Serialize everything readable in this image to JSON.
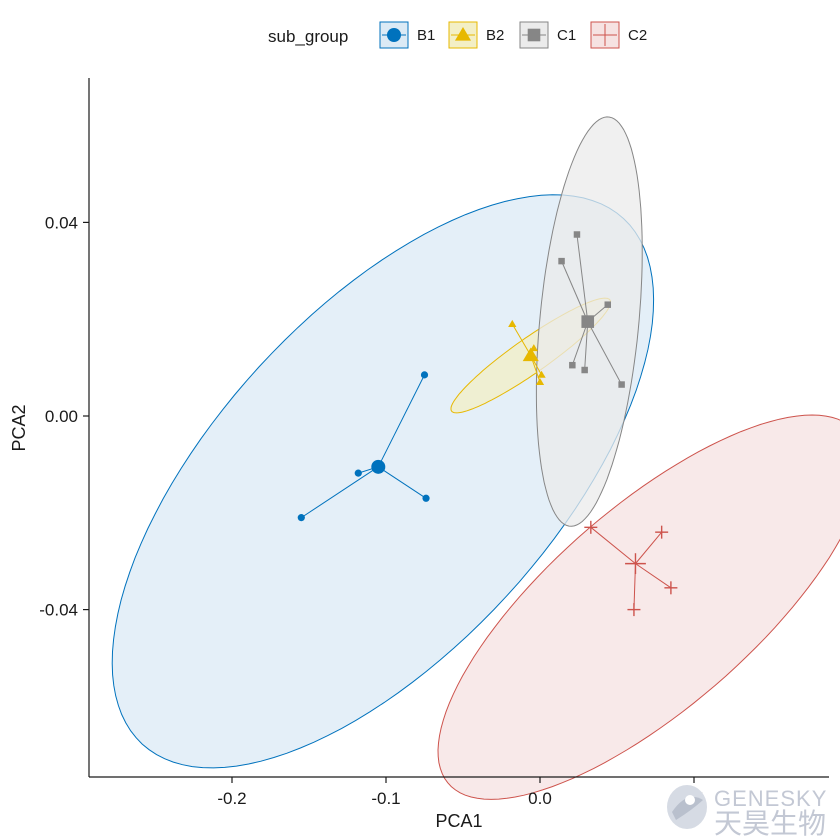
{
  "chart_data": {
    "type": "scatter",
    "xlabel": "PCA1",
    "ylabel": "PCA2",
    "xlim": [
      -0.29,
      0.19
    ],
    "ylim": [
      -0.075,
      0.07
    ],
    "x_ticks": [
      -0.2,
      -0.1,
      0.0,
      0.1
    ],
    "x_tick_labels": [
      "-0.2",
      "-0.1",
      "0.0",
      "0.1"
    ],
    "y_ticks": [
      -0.04,
      0.0,
      0.04
    ],
    "y_tick_labels": [
      "-0.04",
      "0.00",
      "0.04"
    ],
    "grid": false,
    "legend": {
      "title": "sub_group",
      "position": "top"
    },
    "series": [
      {
        "name": "B1",
        "color": "#0072BD",
        "marker": "circle",
        "centroid": [
          -0.105,
          -0.0105
        ],
        "points": [
          [
            -0.155,
            -0.021
          ],
          [
            -0.118,
            -0.0118
          ],
          [
            -0.075,
            0.0085
          ],
          [
            -0.074,
            -0.017
          ]
        ],
        "ellipse": {
          "center": [
            -0.102,
            -0.0135
          ],
          "semi_axes": [
            0.18,
            0.0448
          ],
          "angle_deg": 12.83
        }
      },
      {
        "name": "B2",
        "color": "#E7B800",
        "marker": "triangle",
        "centroid": [
          -0.006,
          0.0125
        ],
        "points": [
          [
            -0.018,
            0.019
          ],
          [
            -0.004,
            0.014
          ],
          [
            0.001,
            0.0085
          ],
          [
            0.0,
            0.007
          ]
        ],
        "ellipse": {
          "center": [
            -0.006,
            0.0125
          ],
          "semi_axes": [
            0.053,
            0.00425
          ],
          "angle_deg": 12.09
        }
      },
      {
        "name": "C1",
        "color": "#868686",
        "marker": "square",
        "centroid": [
          0.031,
          0.0195
        ],
        "points": [
          [
            0.024,
            0.0375
          ],
          [
            0.014,
            0.032
          ],
          [
            0.044,
            0.023
          ],
          [
            0.021,
            0.0105
          ],
          [
            0.029,
            0.0095
          ],
          [
            0.053,
            0.0065
          ]
        ],
        "ellipse": {
          "center": [
            0.032,
            0.0195
          ],
          "semi_axes": [
            0.0455,
            0.03
          ],
          "angle_deg": 60.62
        }
      },
      {
        "name": "C2",
        "color": "#CD534C",
        "marker": "plus",
        "centroid": [
          0.062,
          -0.0305
        ],
        "points": [
          [
            0.033,
            -0.023
          ],
          [
            0.079,
            -0.024
          ],
          [
            0.085,
            -0.0355
          ],
          [
            0.061,
            -0.04
          ]
        ],
        "ellipse": {
          "center": [
            0.0725,
            -0.0395
          ],
          "semi_axes": [
            0.142,
            0.0256
          ],
          "angle_deg": 12.55
        }
      }
    ]
  },
  "watermark": {
    "brand_en": "GENESKY",
    "brand_cn": "天昊生物"
  }
}
